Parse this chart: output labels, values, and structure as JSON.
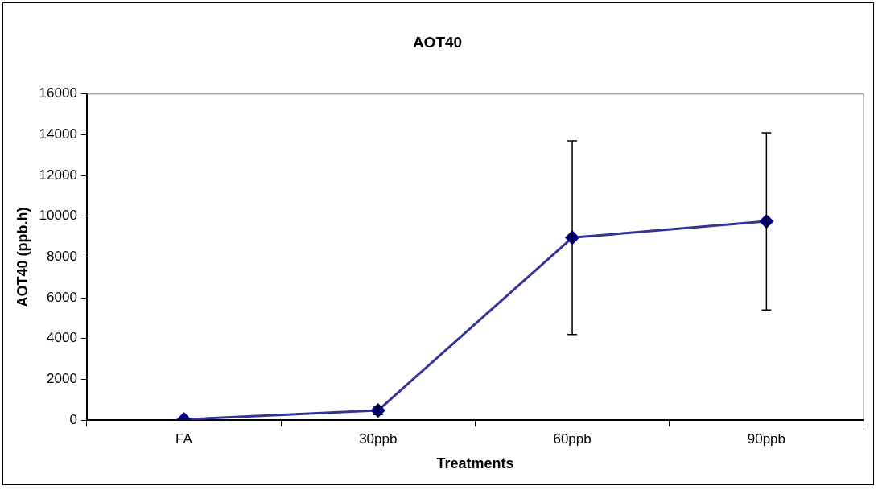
{
  "chart_data": {
    "type": "line",
    "title": "AOT40",
    "xlabel": "Treatments",
    "ylabel": "AOT40 (ppb.h)",
    "categories": [
      "FA",
      "30ppb",
      "60ppb",
      "90ppb"
    ],
    "series": [
      {
        "color": "#000080",
        "values": [
          30,
          470,
          8950,
          9750
        ],
        "errors": [
          null,
          200,
          4750,
          4350
        ]
      }
    ],
    "ylim": [
      0,
      16000
    ],
    "yticks": [
      0,
      2000,
      4000,
      6000,
      8000,
      10000,
      12000,
      14000,
      16000
    ],
    "grid": false,
    "legend": false,
    "marker": "diamond",
    "line_style": "solid"
  }
}
